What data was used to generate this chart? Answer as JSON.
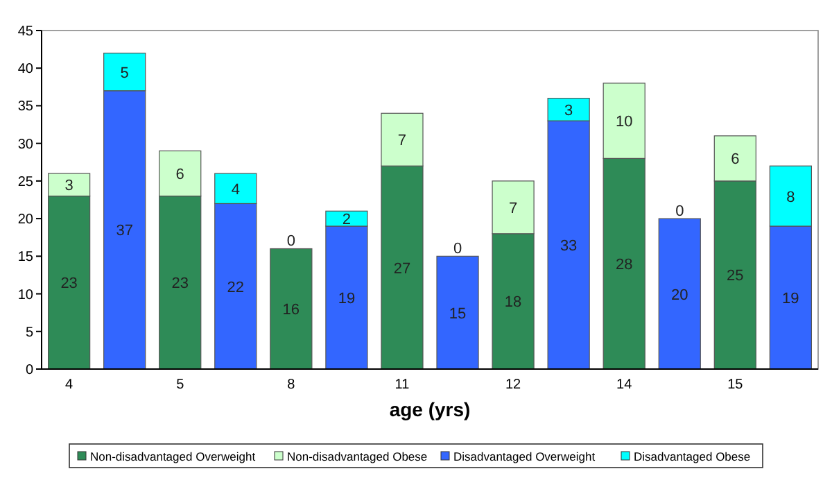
{
  "chart_data": {
    "type": "bar",
    "stacked": true,
    "xlabel": "age (yrs)",
    "categories": [
      "4",
      null,
      "5",
      null,
      "8",
      null,
      "11",
      null,
      "12",
      null,
      "14",
      null,
      "15",
      null
    ],
    "series": [
      {
        "name": "Non-disadvantaged Overweight",
        "color": "#2e8b57",
        "values": [
          23,
          null,
          23,
          null,
          16,
          null,
          27,
          null,
          18,
          null,
          28,
          null,
          25,
          null
        ]
      },
      {
        "name": "Non-disadvantaged Obese",
        "color": "#ccffcc",
        "values": [
          3,
          null,
          6,
          null,
          0,
          null,
          7,
          null,
          7,
          null,
          10,
          null,
          6,
          null
        ]
      },
      {
        "name": "Disadvantaged Overweight",
        "color": "#3366ff",
        "values": [
          null,
          37,
          null,
          22,
          null,
          19,
          null,
          15,
          null,
          33,
          null,
          20,
          null,
          19
        ]
      },
      {
        "name": "Disadvantaged Obese",
        "color": "#00ffff",
        "values": [
          null,
          5,
          null,
          4,
          null,
          2,
          null,
          0,
          null,
          3,
          null,
          0,
          null,
          8
        ]
      }
    ],
    "ylim": [
      0,
      45
    ],
    "yticks": [
      0,
      5,
      10,
      15,
      20,
      25,
      30,
      35,
      40,
      45
    ],
    "data_labels": true,
    "grid": false,
    "legend": "bottom"
  }
}
